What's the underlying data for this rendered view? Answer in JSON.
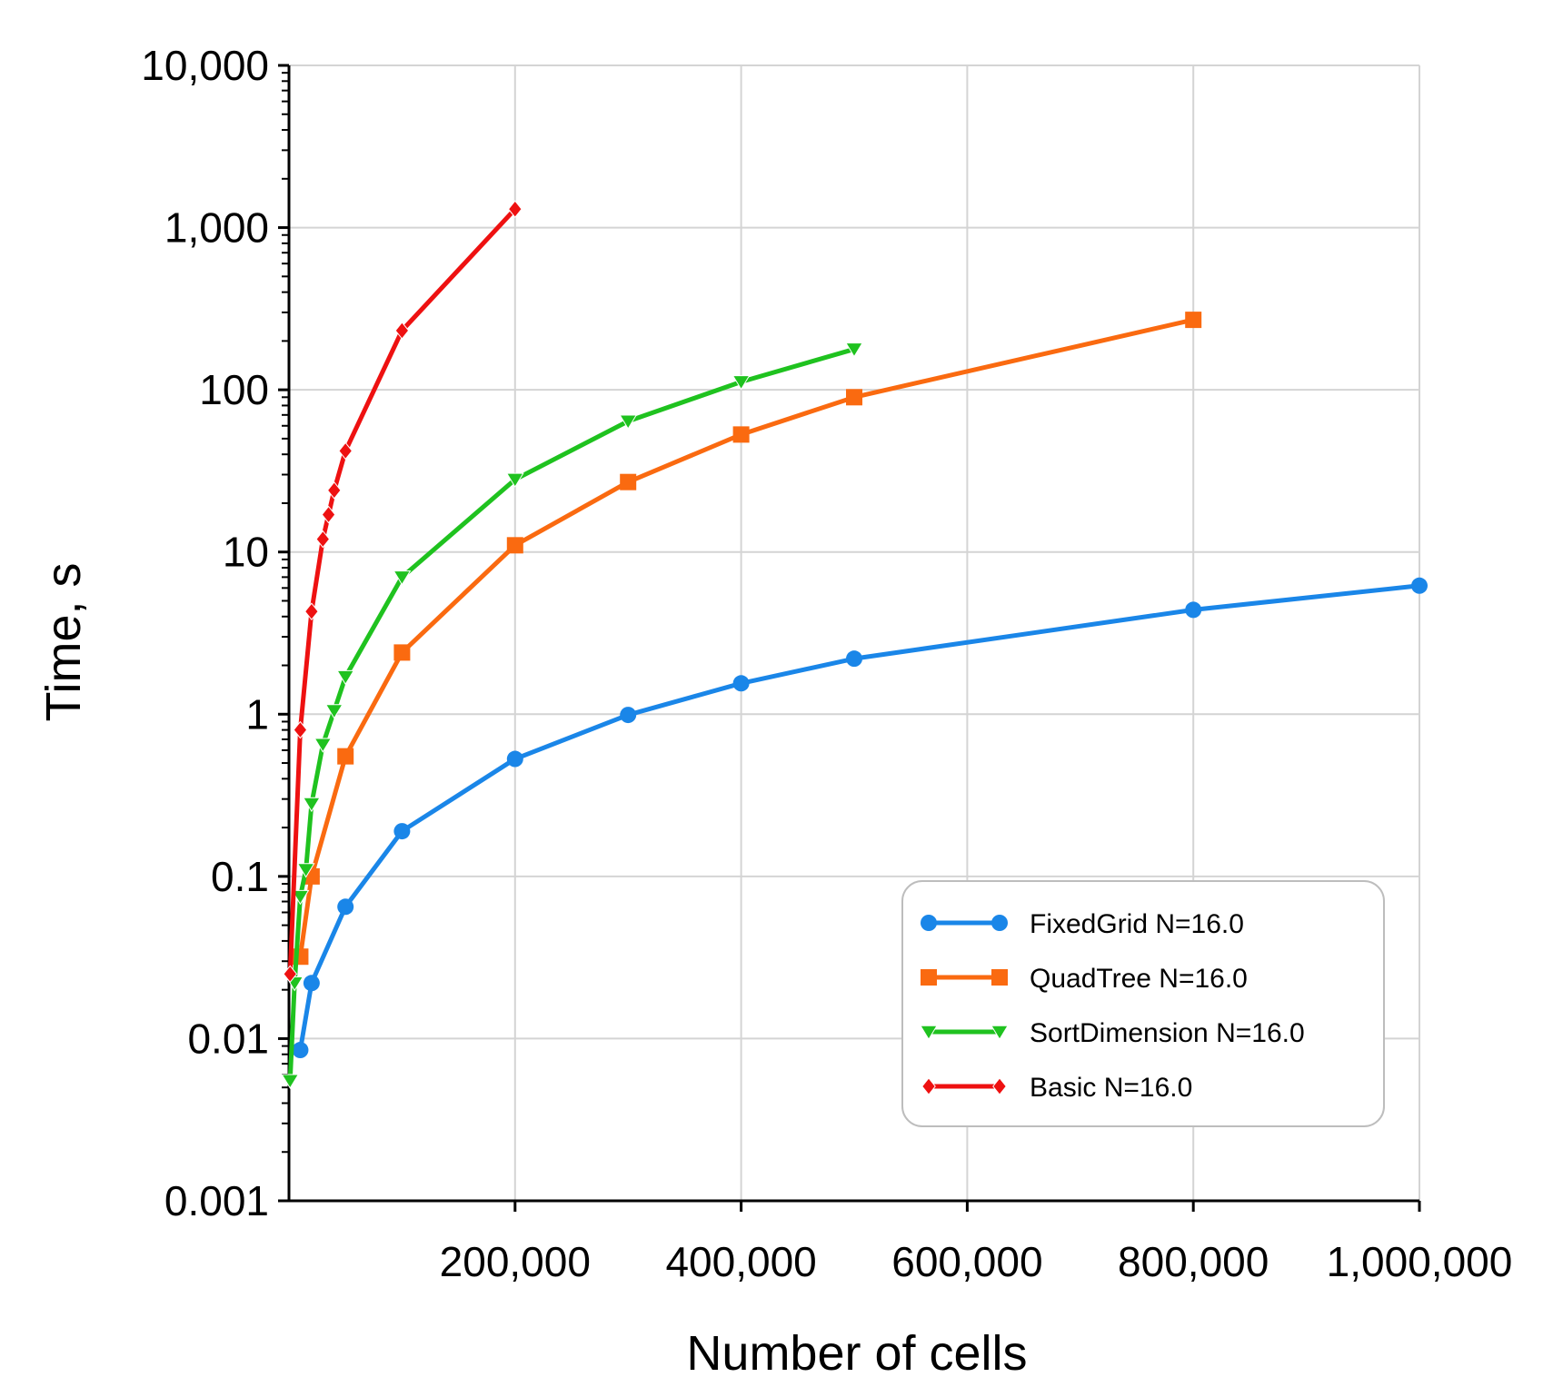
{
  "chart_data": {
    "type": "line",
    "title": "",
    "xlabel": "Number of cells",
    "ylabel": "Time, s",
    "xlim": [
      0,
      1000000
    ],
    "ylim": [
      0.001,
      10000
    ],
    "yscale": "log",
    "grid": true,
    "legend_position": "bottom-right",
    "x_ticks": [
      {
        "value": 200000,
        "label": "200,000"
      },
      {
        "value": 400000,
        "label": "400,000"
      },
      {
        "value": 600000,
        "label": "600,000"
      },
      {
        "value": 800000,
        "label": "800,000"
      },
      {
        "value": 1000000,
        "label": "1,000,000"
      }
    ],
    "y_ticks": [
      {
        "value": 0.001,
        "label": "0.001"
      },
      {
        "value": 0.01,
        "label": "0.01"
      },
      {
        "value": 0.1,
        "label": "0.1"
      },
      {
        "value": 1,
        "label": "1"
      },
      {
        "value": 10,
        "label": "10"
      },
      {
        "value": 100,
        "label": "100"
      },
      {
        "value": 1000,
        "label": "1,000"
      },
      {
        "value": 10000,
        "label": "10,000"
      }
    ],
    "series": [
      {
        "name": "FixedGrid N=16.0",
        "color": "#1a86e8",
        "marker": "circle",
        "points": [
          [
            10000,
            0.0085
          ],
          [
            20000,
            0.022
          ],
          [
            50000,
            0.065
          ],
          [
            100000,
            0.19
          ],
          [
            200000,
            0.53
          ],
          [
            300000,
            0.99
          ],
          [
            400000,
            1.55
          ],
          [
            500000,
            2.2
          ],
          [
            800000,
            4.4
          ],
          [
            1000000,
            6.2
          ]
        ]
      },
      {
        "name": "QuadTree N=16.0",
        "color": "#fa6a10",
        "marker": "square",
        "points": [
          [
            10000,
            0.032
          ],
          [
            20000,
            0.1
          ],
          [
            50000,
            0.55
          ],
          [
            100000,
            2.4
          ],
          [
            200000,
            11
          ],
          [
            300000,
            27
          ],
          [
            400000,
            53
          ],
          [
            500000,
            90
          ],
          [
            800000,
            270
          ]
        ]
      },
      {
        "name": "SortDimension N=16.0",
        "color": "#1fc21f",
        "marker": "triangle-down",
        "points": [
          [
            1000,
            0.0055
          ],
          [
            5000,
            0.022
          ],
          [
            10000,
            0.075
          ],
          [
            15000,
            0.11
          ],
          [
            20000,
            0.28
          ],
          [
            30000,
            0.65
          ],
          [
            40000,
            1.05
          ],
          [
            50000,
            1.7
          ],
          [
            100000,
            7
          ],
          [
            200000,
            28
          ],
          [
            300000,
            64
          ],
          [
            400000,
            112
          ],
          [
            500000,
            178
          ]
        ]
      },
      {
        "name": "Basic N=16.0",
        "color": "#ee1111",
        "marker": "diamond",
        "points": [
          [
            1000,
            0.025
          ],
          [
            10000,
            0.8
          ],
          [
            20000,
            4.3
          ],
          [
            30000,
            12
          ],
          [
            35000,
            17
          ],
          [
            40000,
            24
          ],
          [
            50000,
            42
          ],
          [
            100000,
            232
          ],
          [
            200000,
            1300
          ]
        ]
      }
    ]
  }
}
